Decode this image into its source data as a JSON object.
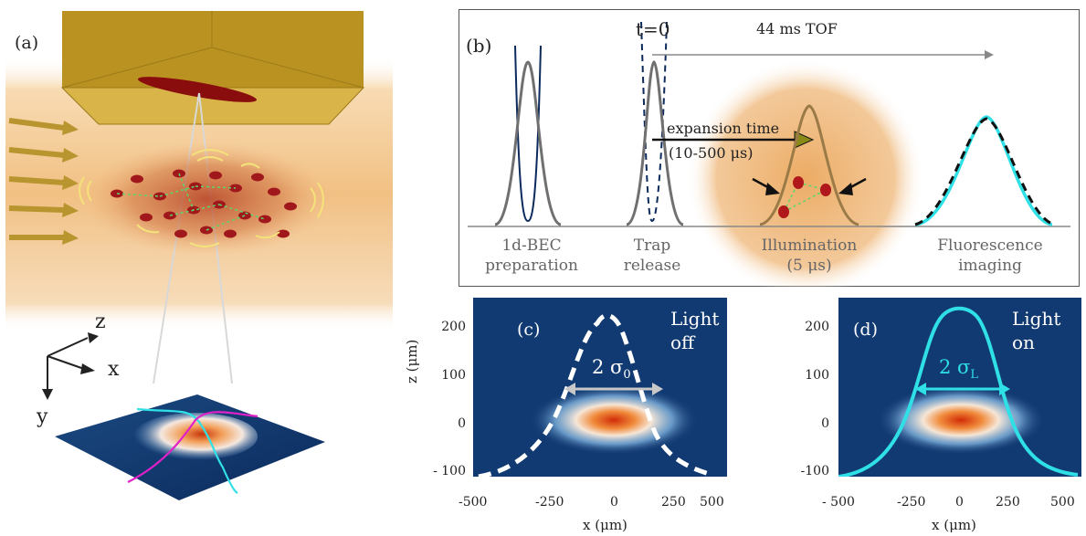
{
  "panels": {
    "a": {
      "label": "(a)",
      "axes": {
        "z": "z",
        "x": "x",
        "y": "y"
      }
    },
    "b": {
      "label": "(b)",
      "t0": "t=0",
      "tof": "44 ms TOF",
      "expansion_line1": "expansion time",
      "expansion_line2": "(10-500 μs)",
      "stages": [
        {
          "line1": "1d-BEC",
          "line2": "preparation"
        },
        {
          "line1": "Trap",
          "line2": "release"
        },
        {
          "line1": "Illumination",
          "line2": "(5 μs)"
        },
        {
          "line1": "Fluorescence",
          "line2": "imaging"
        }
      ]
    },
    "c": {
      "label": "(c)",
      "light1": "Light",
      "light2": "off",
      "width_sym": "2 σ",
      "width_sub": "0",
      "x_ticks": [
        "-500",
        "-250",
        "0",
        "250",
        "500"
      ],
      "y_ticks": [
        "200",
        "100",
        "0",
        "- 100"
      ],
      "xlabel": "x (μm)",
      "ylabel": "z (μm)"
    },
    "d": {
      "label": "(d)",
      "light1": "Light",
      "light2": "on",
      "width_sym": "2 σ",
      "width_sub": "L",
      "x_ticks": [
        "- 500",
        "-250",
        "0",
        "250",
        "500"
      ],
      "y_ticks": [
        "200",
        "100",
        "0",
        "-100"
      ],
      "xlabel": "x (μm)"
    }
  },
  "colors": {
    "gold": "#c8a233",
    "dark_blue": "#0c2a5c",
    "cyan": "#2fe0e6",
    "gray_curve": "#707070",
    "droplet_red": "#a0181c",
    "magenta": "#e020c8"
  }
}
